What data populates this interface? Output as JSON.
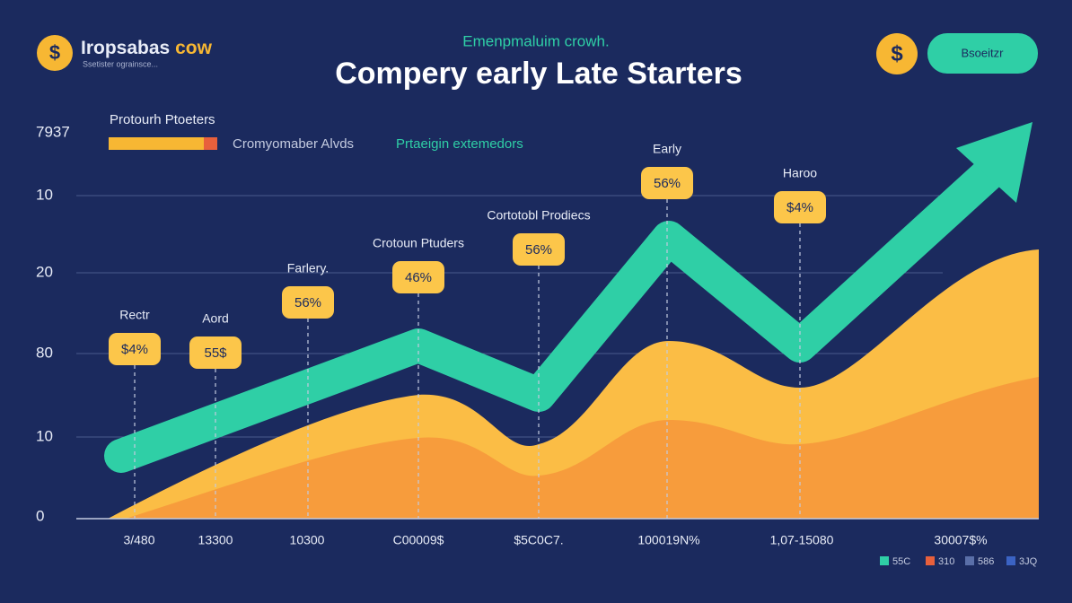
{
  "brand": {
    "name": "Iropsabas",
    "accent": "cow",
    "tagline": "Ssetister ograinsce..."
  },
  "header": {
    "subtitle": "Emenpmaluim crowh.",
    "title": "Compery early Late Starters",
    "button": "Bsoeitzr"
  },
  "legend_top": {
    "heading": "Protourh Ptoeters",
    "item1": "Cromyomaber Alvds",
    "item2": "Prtaeigin extemedors"
  },
  "y_labels": [
    "7937",
    "10",
    "20",
    "80",
    "10",
    "0"
  ],
  "annotations": [
    {
      "label": "Rectr",
      "badge": "$4%"
    },
    {
      "label": "Aord",
      "badge": "55$"
    },
    {
      "label": "Farlery.",
      "badge": "56%"
    },
    {
      "label": "Crotoun Ptuders",
      "badge": "46%"
    },
    {
      "label": "Cortotobl Prodiecs",
      "badge": "56%"
    },
    {
      "label": "Early",
      "badge": "56%"
    },
    {
      "label": "Haroo",
      "badge": "$4%"
    }
  ],
  "x_labels": [
    "3/480",
    "13300",
    "10300",
    "C00009$",
    "$5C0C7.",
    "100019N%",
    "1,07-15080",
    "30007$%"
  ],
  "legend_bottom": [
    "55C",
    "310",
    "586",
    "3JQ"
  ]
}
